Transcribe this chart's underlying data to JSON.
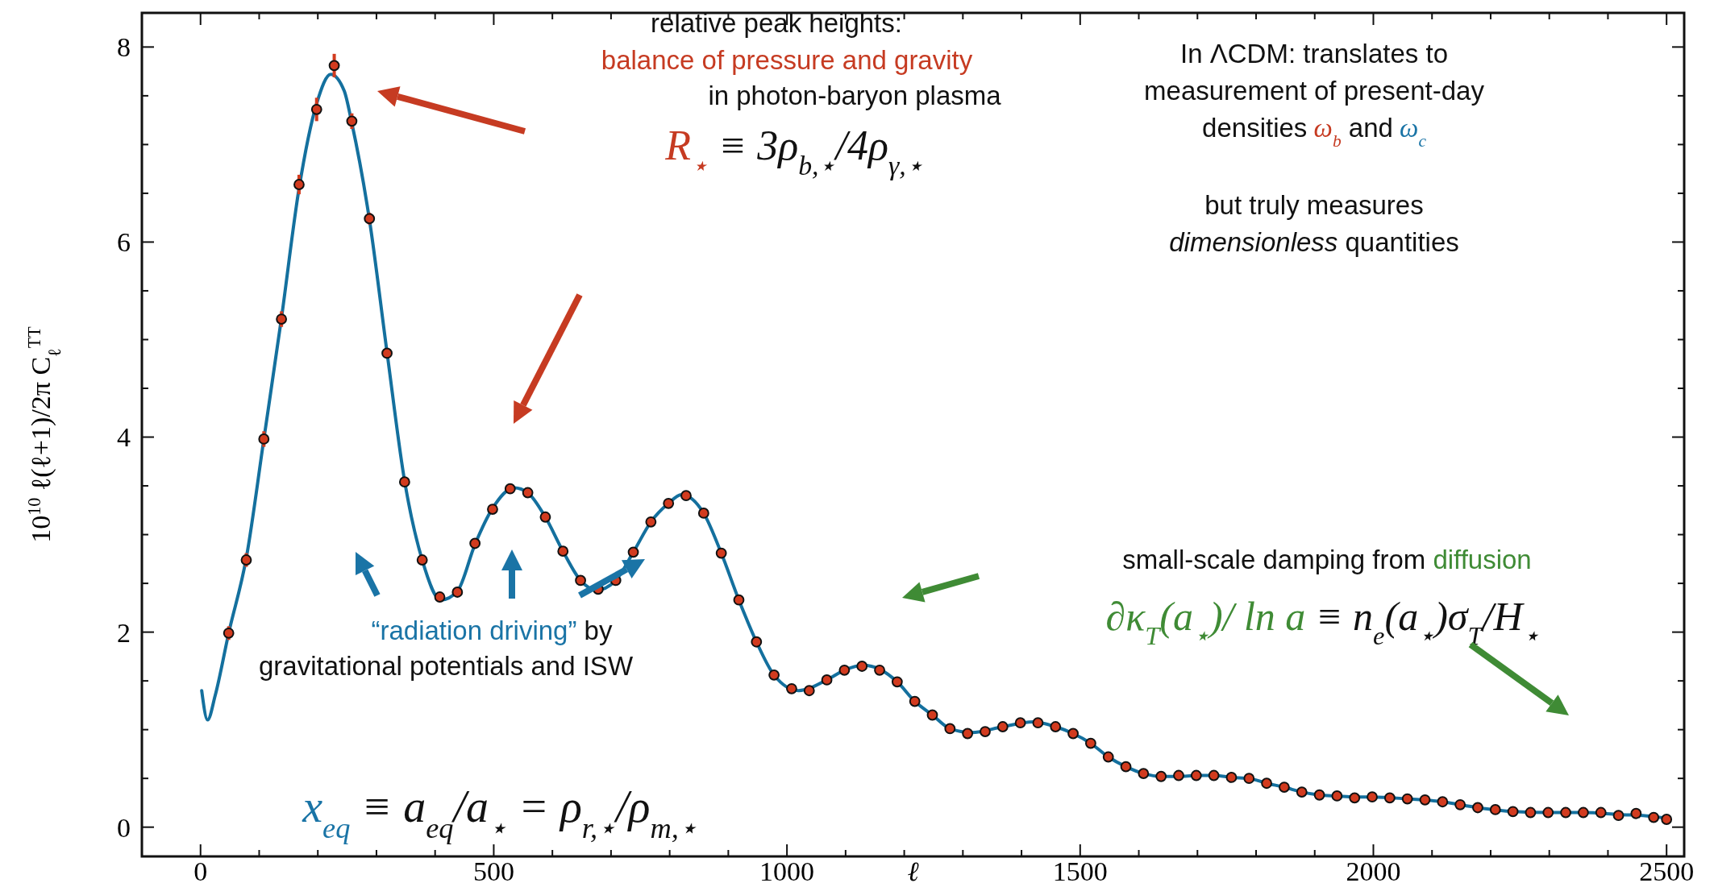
{
  "chart_data": {
    "type": "line",
    "xlabel": "ℓ",
    "ylabel": "10$^{10}$ ℓ(ℓ+1)/2π C$_{ℓ}$$^{TT}$",
    "xlim": [
      -100,
      2530
    ],
    "ylim": [
      -0.3,
      8.35
    ],
    "xticks": [
      0,
      {
        "value": 100,
        "label": null
      },
      {
        "value": 200,
        "label": null
      },
      {
        "value": 300,
        "label": null
      },
      {
        "value": 400,
        "label": null
      },
      500,
      {
        "value": 600,
        "label": null
      },
      {
        "value": 700,
        "label": null
      },
      {
        "value": 800,
        "label": null
      },
      {
        "value": 900,
        "label": null
      },
      1000,
      {
        "value": 1100,
        "label": null
      },
      {
        "value": 1200,
        "label": null
      },
      {
        "value": 1300,
        "label": null
      },
      {
        "value": 1400,
        "label": null
      },
      1500,
      {
        "value": 1600,
        "label": null
      },
      {
        "value": 1700,
        "label": null
      },
      {
        "value": 1800,
        "label": null
      },
      {
        "value": 1900,
        "label": null
      },
      2000,
      {
        "value": 2100,
        "label": null
      },
      {
        "value": 2200,
        "label": null
      },
      {
        "value": 2300,
        "label": null
      },
      {
        "value": 2400,
        "label": null
      },
      2500
    ],
    "yticks": [
      0,
      {
        "value": 0.5,
        "label": null
      },
      {
        "value": 1,
        "label": null
      },
      {
        "value": 1.5,
        "label": null
      },
      2,
      {
        "value": 2.5,
        "label": null
      },
      {
        "value": 3,
        "label": null
      },
      {
        "value": 3.5,
        "label": null
      },
      4,
      {
        "value": 4.5,
        "label": null
      },
      {
        "value": 5,
        "label": null
      },
      {
        "value": 5.5,
        "label": null
      },
      6,
      {
        "value": 6.5,
        "label": null
      },
      {
        "value": 7,
        "label": null
      },
      {
        "value": 7.5,
        "label": null
      },
      8
    ],
    "grid": false,
    "series": [
      {
        "type": "line",
        "color": "#14709e",
        "line_style": "solid",
        "x": [
          2,
          12,
          25,
          48,
          78,
          108,
          138,
          168,
          198,
          222,
          245,
          258,
          288,
          318,
          348,
          378,
          410,
          438,
          468,
          498,
          535,
          558,
          588,
          618,
          648,
          675,
          708,
          738,
          768,
          798,
          820,
          858,
          888,
          918,
          948,
          978,
          1020,
          1068,
          1098,
          1130,
          1158,
          1188,
          1218,
          1248,
          1278,
          1315,
          1368,
          1420,
          1458,
          1488,
          1518,
          1548,
          1578,
          1608,
          1638,
          1668,
          1698,
          1728,
          1758,
          1788,
          1818,
          1848,
          1878,
          1908,
          1938,
          1968,
          1998,
          2058,
          2118,
          2178,
          2238,
          2298,
          2358,
          2418,
          2478,
          2500
        ],
        "values": [
          1.4,
          1.1,
          1.35,
          1.99,
          2.76,
          3.98,
          5.22,
          6.55,
          7.42,
          7.72,
          7.55,
          7.22,
          6.23,
          4.87,
          3.55,
          2.74,
          2.33,
          2.42,
          2.9,
          3.27,
          3.48,
          3.43,
          3.18,
          2.83,
          2.53,
          2.43,
          2.53,
          2.82,
          3.13,
          3.32,
          3.41,
          3.22,
          2.81,
          2.33,
          1.9,
          1.56,
          1.4,
          1.51,
          1.61,
          1.66,
          1.62,
          1.49,
          1.29,
          1.15,
          1.01,
          0.97,
          1.03,
          1.08,
          1.03,
          0.96,
          0.86,
          0.72,
          0.62,
          0.55,
          0.52,
          0.52,
          0.53,
          0.53,
          0.51,
          0.5,
          0.45,
          0.41,
          0.36,
          0.33,
          0.32,
          0.31,
          0.31,
          0.29,
          0.26,
          0.2,
          0.16,
          0.15,
          0.15,
          0.13,
          0.11,
          0.09
        ]
      },
      {
        "type": "scatter",
        "color": "#d23b1f",
        "marker": "circle",
        "x": [
          48,
          78,
          108,
          138,
          168,
          198,
          228,
          258,
          288,
          318,
          348,
          378,
          408,
          438,
          468,
          498,
          528,
          558,
          588,
          618,
          648,
          678,
          708,
          738,
          768,
          798,
          828,
          858,
          888,
          918,
          948,
          978,
          1008,
          1038,
          1068,
          1098,
          1128,
          1158,
          1188,
          1218,
          1248,
          1278,
          1308,
          1338,
          1368,
          1398,
          1428,
          1458,
          1488,
          1518,
          1548,
          1578,
          1608,
          1638,
          1668,
          1698,
          1728,
          1758,
          1788,
          1818,
          1848,
          1878,
          1908,
          1938,
          1968,
          1998,
          2028,
          2058,
          2088,
          2118,
          2148,
          2178,
          2208,
          2238,
          2268,
          2298,
          2328,
          2358,
          2388,
          2418,
          2448,
          2478,
          2500
        ],
        "values": [
          1.99,
          2.74,
          3.98,
          5.21,
          6.59,
          7.36,
          7.81,
          7.24,
          6.24,
          4.86,
          3.54,
          2.74,
          2.36,
          2.41,
          2.91,
          3.26,
          3.47,
          3.43,
          3.18,
          2.83,
          2.53,
          2.44,
          2.53,
          2.82,
          3.13,
          3.32,
          3.4,
          3.22,
          2.81,
          2.33,
          1.9,
          1.56,
          1.42,
          1.4,
          1.51,
          1.61,
          1.65,
          1.61,
          1.49,
          1.29,
          1.15,
          1.01,
          0.96,
          0.98,
          1.03,
          1.07,
          1.07,
          1.03,
          0.96,
          0.86,
          0.72,
          0.62,
          0.55,
          0.52,
          0.53,
          0.53,
          0.53,
          0.51,
          0.5,
          0.45,
          0.41,
          0.36,
          0.33,
          0.32,
          0.3,
          0.31,
          0.3,
          0.29,
          0.28,
          0.26,
          0.23,
          0.2,
          0.18,
          0.16,
          0.15,
          0.15,
          0.15,
          0.15,
          0.15,
          0.12,
          0.14,
          0.1,
          0.08
        ],
        "errors": [
          0.07,
          0.07,
          0.08,
          0.08,
          0.1,
          0.12,
          0.12,
          0.08,
          0.06,
          null,
          null,
          null,
          null,
          null,
          null,
          null,
          null,
          null,
          null,
          null,
          null,
          null,
          null,
          null,
          null,
          null,
          null,
          null,
          null,
          null,
          null,
          null,
          null,
          null,
          null,
          null,
          null,
          null,
          null,
          null,
          null,
          null,
          null,
          null,
          null,
          null,
          null,
          null,
          null,
          null,
          null,
          null,
          null,
          null,
          null,
          null,
          null,
          null,
          null,
          null,
          null,
          null,
          null,
          null,
          null,
          null,
          null,
          null,
          null,
          null,
          null,
          null,
          null,
          null,
          null,
          null,
          null,
          null,
          null,
          null,
          null,
          null,
          null
        ]
      }
    ],
    "annotations": [
      "relative peak heights:",
      "balance of pressure and gravity",
      "in photon-baryon plasma",
      "R$_{⋆}$",
      "≡ 3ρ$_{b,⋆}$/4ρ$_{γ,⋆}$",
      "In ΛCDM: translates to",
      "measurement of present-day",
      "densities",
      "ω$_{b}$",
      "and",
      "ω$_{c}$",
      "but truly measures",
      "dimensionless",
      "quantities",
      "“radiation driving”",
      "by",
      "gravitational potentials and ISW",
      "x$_{eq}$",
      "≡ a$_{eq}$/a$_{⋆}$ = ρ$_{r,⋆}$/ρ$_{m,⋆}$",
      "small-scale damping from",
      "diffusion",
      "∂κ$_{T}$(a$_{⋆}$)/ ln a",
      "≡ n$_{e}$(a$_{⋆}$)σ$_{T}$/H$_{⋆}$"
    ]
  }
}
